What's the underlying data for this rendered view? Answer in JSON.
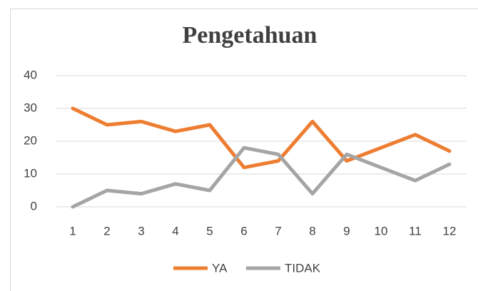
{
  "chart_data": {
    "type": "line",
    "title": "Pengetahuan",
    "categories": [
      "1",
      "2",
      "3",
      "4",
      "5",
      "6",
      "7",
      "8",
      "9",
      "10",
      "11",
      "12"
    ],
    "series": [
      {
        "name": "YA",
        "color": "#ed7d31",
        "values": [
          30,
          25,
          26,
          23,
          25,
          12,
          14,
          26,
          14,
          18,
          22,
          17
        ]
      },
      {
        "name": "TIDAK",
        "color": "#a5a5a5",
        "values": [
          0,
          5,
          4,
          7,
          5,
          18,
          16,
          4,
          16,
          12,
          8,
          13
        ]
      }
    ],
    "ylim": [
      0,
      40
    ],
    "yticks": [
      0,
      10,
      20,
      30,
      40
    ],
    "grid": true,
    "legend": "bottom"
  }
}
